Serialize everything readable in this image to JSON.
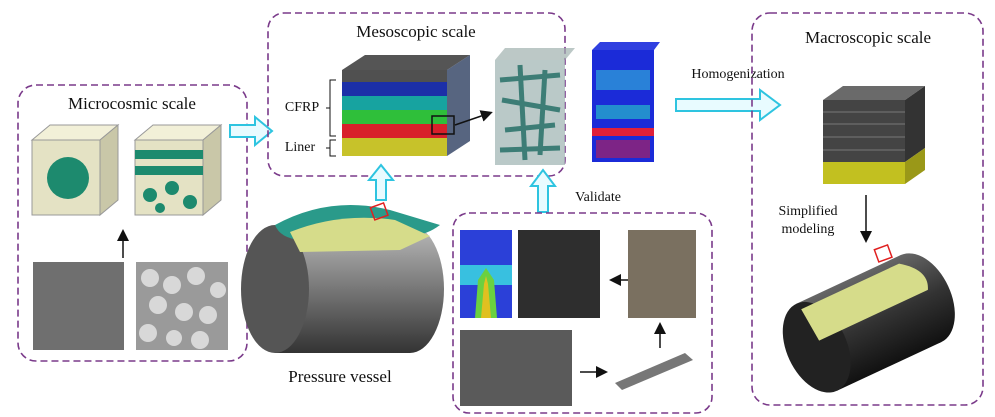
{
  "panels": {
    "microcosmic": {
      "title": "Microcosmic scale"
    },
    "mesoscopic": {
      "title": "Mesoscopic scale",
      "labels": [
        "CFRP",
        "Liner"
      ]
    },
    "macroscopic": {
      "title": "Macroscopic scale",
      "note": [
        "Simplified",
        "modeling"
      ]
    },
    "validation": {
      "label": "Validate"
    }
  },
  "arrows": {
    "homogenization": "Homogenization"
  },
  "vessel": {
    "caption": "Pressure vessel"
  }
}
